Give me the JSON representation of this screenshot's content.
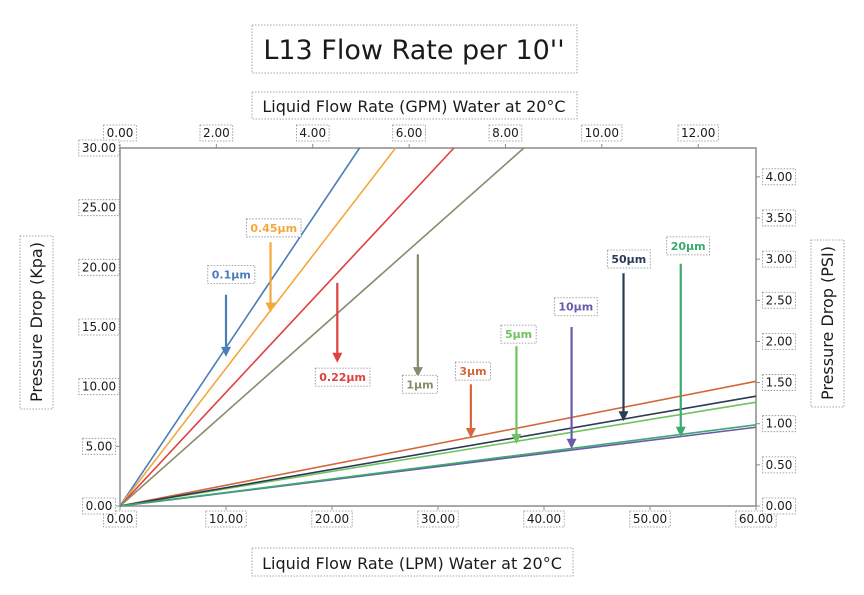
{
  "chart_data": {
    "type": "line",
    "title": "L13 Flow Rate per 10''",
    "xlabel": "Liquid Flow Rate (LPM) Water at 20°C",
    "x2label": "Liquid Flow Rate (GPM) Water at 20°C",
    "ylabel": "Pressure Drop (Kpa)",
    "y2label": "Pressure Drop (PSI)",
    "xlim": [
      0,
      60
    ],
    "ylim": [
      0,
      30
    ],
    "x2lim": [
      0,
      13.2
    ],
    "y2lim": [
      0,
      4.35
    ],
    "x_ticks": [
      "0.00",
      "10.00",
      "20.00",
      "30.00",
      "40.00",
      "50.00",
      "60.00"
    ],
    "y_ticks": [
      "0.00",
      "5.00",
      "10.00",
      "15.00",
      "20.00",
      "25.00",
      "30.00"
    ],
    "x2_ticks": [
      "0.00",
      "2.00",
      "4.00",
      "6.00",
      "8.00",
      "10.00",
      "12.00"
    ],
    "y2_ticks": [
      "0.00",
      "0.50",
      "1.00",
      "1.50",
      "2.00",
      "2.50",
      "3.00",
      "3.50",
      "4.00"
    ],
    "grid": false,
    "legend": "inline labels with arrows",
    "series": [
      {
        "name": "0.1µm",
        "color": "#4a7ebb",
        "x": [
          0,
          22.6
        ],
        "y": [
          0,
          30
        ],
        "label_at": [
          10.5,
          19.4
        ],
        "arrow_from": [
          10.0,
          17.7
        ],
        "arrow_to": [
          10.0,
          12.5
        ]
      },
      {
        "name": "0.45µm",
        "color": "#f5a83a",
        "x": [
          0,
          26.0
        ],
        "y": [
          0,
          30
        ],
        "label_at": [
          14.5,
          23.3
        ],
        "arrow_from": [
          14.2,
          22.1
        ],
        "arrow_to": [
          14.2,
          16.2
        ]
      },
      {
        "name": "0.22µm",
        "color": "#e0403f",
        "x": [
          0,
          31.5
        ],
        "y": [
          0,
          30
        ],
        "label_at": [
          21.0,
          10.8
        ],
        "arrow_from": [
          20.5,
          18.7
        ],
        "arrow_to": [
          20.5,
          12.0
        ]
      },
      {
        "name": "1µm",
        "color": "#8a8a6e",
        "x": [
          0,
          38.1
        ],
        "y": [
          0,
          30
        ],
        "label_at": [
          28.3,
          10.2
        ],
        "arrow_from": [
          28.1,
          21.1
        ],
        "arrow_to": [
          28.1,
          10.8
        ]
      },
      {
        "name": "3µm",
        "color": "#d4683a",
        "x": [
          0,
          60.0
        ],
        "y": [
          0,
          10.45
        ],
        "label_at": [
          33.3,
          11.3
        ],
        "arrow_from": [
          33.1,
          10.2
        ],
        "arrow_to": [
          33.1,
          5.7
        ]
      },
      {
        "name": "5µm",
        "color": "#6fc25e",
        "x": [
          0,
          60.0
        ],
        "y": [
          0,
          8.7
        ],
        "label_at": [
          37.6,
          14.4
        ],
        "arrow_from": [
          37.4,
          13.4
        ],
        "arrow_to": [
          37.4,
          5.2
        ]
      },
      {
        "name": "10µm",
        "color": "#6a5ba8",
        "x": [
          0,
          60.0
        ],
        "y": [
          0,
          6.6
        ],
        "label_at": [
          43.0,
          16.7
        ],
        "arrow_from": [
          42.6,
          15.0
        ],
        "arrow_to": [
          42.6,
          4.8
        ]
      },
      {
        "name": "50µm",
        "color": "#2b3a55",
        "x": [
          0,
          60.0
        ],
        "y": [
          0,
          9.2
        ],
        "label_at": [
          48.0,
          20.7
        ],
        "arrow_from": [
          47.5,
          19.5
        ],
        "arrow_to": [
          47.5,
          7.1
        ]
      },
      {
        "name": "20µm",
        "color": "#3aaa6e",
        "x": [
          0,
          60.0
        ],
        "y": [
          0,
          6.8
        ],
        "label_at": [
          53.6,
          21.8
        ],
        "arrow_from": [
          52.9,
          20.3
        ],
        "arrow_to": [
          52.9,
          5.8
        ]
      }
    ]
  }
}
